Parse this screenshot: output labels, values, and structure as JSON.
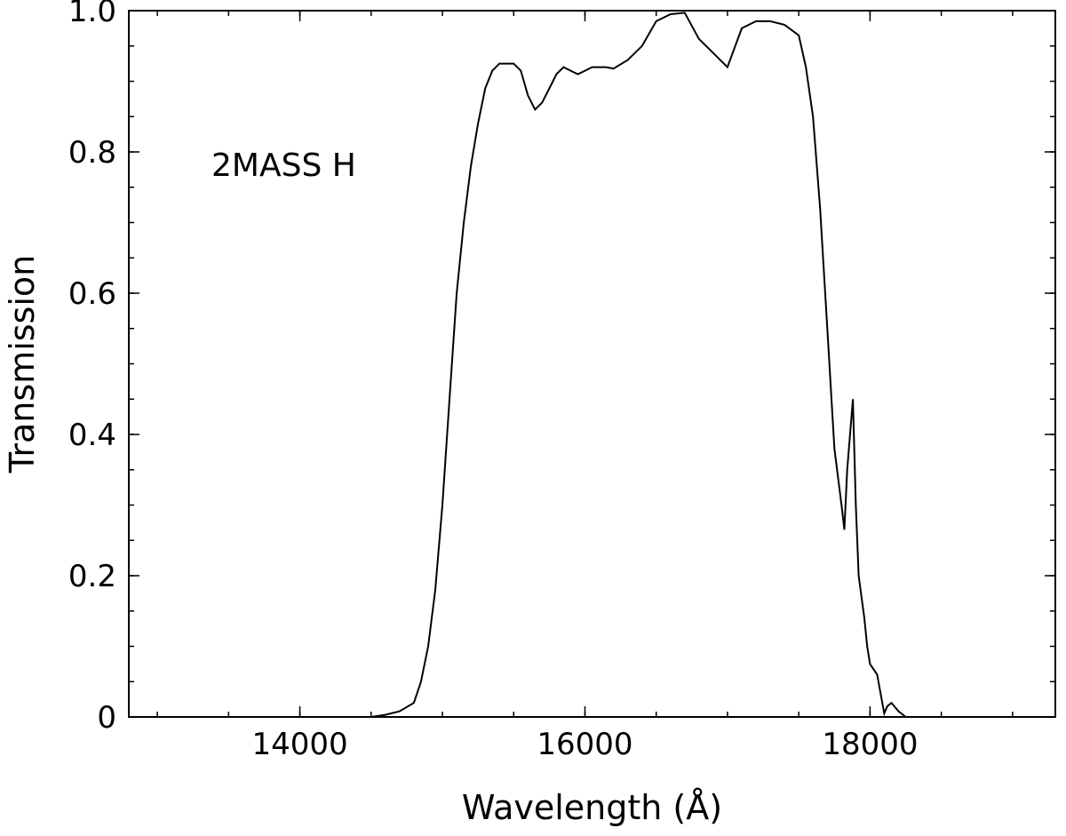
{
  "chart_data": {
    "type": "line",
    "title": "",
    "annotation": "2MASS H",
    "xlabel": "Wavelength (Å)",
    "ylabel": "Transmission",
    "xlim": [
      12800,
      19300
    ],
    "ylim": [
      0,
      1.0
    ],
    "x_ticks": [
      14000,
      16000,
      18000
    ],
    "x_tick_labels": [
      "14000",
      "16000",
      "18000"
    ],
    "y_ticks": [
      0,
      0.2,
      0.4,
      0.6,
      0.8,
      1.0
    ],
    "y_tick_labels": [
      "0",
      "0.2",
      "0.4",
      "0.6",
      "0.8",
      "1.0"
    ],
    "x_minor_step": 500,
    "y_minor_step": 0.05,
    "grid": false,
    "line_color": "#000000",
    "series": [
      {
        "x": [
          14500,
          14600,
          14700,
          14800,
          14850,
          14900,
          14950,
          15000,
          15050,
          15100,
          15150,
          15200,
          15250,
          15300,
          15350,
          15400,
          15450,
          15500,
          15550,
          15600,
          15650,
          15700,
          15750,
          15800,
          15850,
          15900,
          15950,
          16000,
          16050,
          16100,
          16150,
          16200,
          16300,
          16400,
          16500,
          16600,
          16700,
          16800,
          16900,
          17000,
          17100,
          17200,
          17300,
          17400,
          17500,
          17550,
          17600,
          17650,
          17700,
          17750,
          17800,
          17820,
          17840,
          17860,
          17880,
          17900,
          17920,
          17940,
          17960,
          17980,
          18000,
          18050,
          18100,
          18120,
          18150,
          18200,
          18250
        ],
        "y": [
          0.0,
          0.003,
          0.008,
          0.02,
          0.05,
          0.1,
          0.18,
          0.3,
          0.45,
          0.6,
          0.7,
          0.78,
          0.84,
          0.89,
          0.915,
          0.925,
          0.925,
          0.925,
          0.915,
          0.88,
          0.86,
          0.87,
          0.89,
          0.91,
          0.92,
          0.915,
          0.91,
          0.915,
          0.92,
          0.92,
          0.92,
          0.918,
          0.93,
          0.95,
          0.985,
          0.995,
          0.997,
          0.96,
          0.94,
          0.92,
          0.975,
          0.985,
          0.985,
          0.98,
          0.965,
          0.92,
          0.85,
          0.72,
          0.55,
          0.38,
          0.3,
          0.265,
          0.35,
          0.4,
          0.45,
          0.3,
          0.2,
          0.17,
          0.14,
          0.1,
          0.075,
          0.06,
          0.005,
          0.015,
          0.02,
          0.008,
          0.0
        ]
      }
    ]
  }
}
